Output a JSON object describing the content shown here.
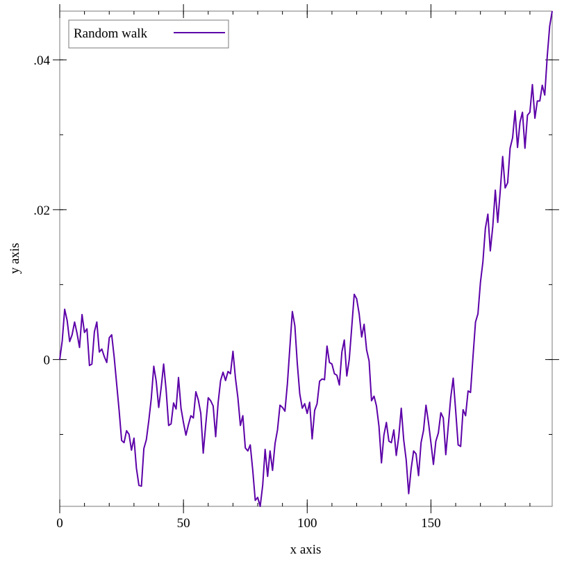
{
  "chart_data": {
    "type": "line",
    "xlabel": "x axis",
    "ylabel": "y axis",
    "xlim": [
      0,
      199
    ],
    "ylim": [
      -0.0196,
      0.0465
    ],
    "x_ticks": [
      {
        "value": 0,
        "label": "0"
      },
      {
        "value": 50,
        "label": "50"
      },
      {
        "value": 100,
        "label": "100"
      },
      {
        "value": 150,
        "label": "150"
      }
    ],
    "y_ticks": [
      {
        "value": 0,
        "label": "0"
      },
      {
        "value": 0.02,
        "label": ".02"
      },
      {
        "value": 0.04,
        "label": ".04"
      }
    ],
    "x_minor_step": 10,
    "y_minor_step": 0.01,
    "grid": false,
    "legend_position": "top-left",
    "series": [
      {
        "name": "Random walk",
        "color": "#5c00a8",
        "x": [
          0,
          1,
          2,
          3,
          4,
          5,
          6,
          7,
          8,
          9,
          10,
          11,
          12,
          13,
          14,
          15,
          16,
          17,
          18,
          19,
          20,
          21,
          22,
          23,
          24,
          25,
          26,
          27,
          28,
          29,
          30,
          31,
          32,
          33,
          34,
          35,
          36,
          37,
          38,
          39,
          40,
          41,
          42,
          43,
          44,
          45,
          46,
          47,
          48,
          49,
          50,
          51,
          52,
          53,
          54,
          55,
          56,
          57,
          58,
          59,
          60,
          61,
          62,
          63,
          64,
          65,
          66,
          67,
          68,
          69,
          70,
          71,
          72,
          73,
          74,
          75,
          76,
          77,
          78,
          79,
          80,
          81,
          82,
          83,
          84,
          85,
          86,
          87,
          88,
          89,
          90,
          91,
          92,
          93,
          94,
          95,
          96,
          97,
          98,
          99,
          100,
          101,
          102,
          103,
          104,
          105,
          106,
          107,
          108,
          109,
          110,
          111,
          112,
          113,
          114,
          115,
          116,
          117,
          118,
          119,
          120,
          121,
          122,
          123,
          124,
          125,
          126,
          127,
          128,
          129,
          130,
          131,
          132,
          133,
          134,
          135,
          136,
          137,
          138,
          139,
          140,
          141,
          142,
          143,
          144,
          145,
          146,
          147,
          148,
          149,
          150,
          151,
          152,
          153,
          154,
          155,
          156,
          157,
          158,
          159,
          160,
          161,
          162,
          163,
          164,
          165,
          166,
          167,
          168,
          169,
          170,
          171,
          172,
          173,
          174,
          175,
          176,
          177,
          178,
          179,
          180,
          181,
          182,
          183,
          184,
          185,
          186,
          187,
          188,
          189,
          190,
          191,
          192,
          193,
          194,
          195,
          196,
          197,
          198,
          199
        ],
        "y": [
          0,
          0.0025,
          0.0067,
          0.0052,
          0.0024,
          0.0033,
          0.005,
          0.0035,
          0.0016,
          0.006,
          0.0036,
          0.0041,
          -0.0008,
          -0.0006,
          0.0037,
          0.005,
          0.001,
          0.0014,
          0.0004,
          -0.0004,
          0.0029,
          0.0033,
          0.0003,
          -0.0032,
          -0.0068,
          -0.0108,
          -0.0111,
          -0.0095,
          -0.01,
          -0.0121,
          -0.0105,
          -0.0145,
          -0.0168,
          -0.0169,
          -0.0119,
          -0.0107,
          -0.0081,
          -0.0052,
          -0.0009,
          -0.0029,
          -0.0064,
          -0.0037,
          -0.0006,
          -0.0041,
          -0.0088,
          -0.0086,
          -0.0058,
          -0.0066,
          -0.0024,
          -0.0065,
          -0.0084,
          -0.0101,
          -0.0087,
          -0.0075,
          -0.0078,
          -0.0043,
          -0.0054,
          -0.0072,
          -0.0125,
          -0.0087,
          -0.0051,
          -0.0055,
          -0.0062,
          -0.0103,
          -0.0058,
          -0.0028,
          -0.0017,
          -0.0028,
          -0.0016,
          -0.0019,
          0.0011,
          -0.0025,
          -0.0051,
          -0.0088,
          -0.0075,
          -0.0118,
          -0.0122,
          -0.0114,
          -0.0148,
          -0.0188,
          -0.0184,
          -0.0196,
          -0.0168,
          -0.012,
          -0.0156,
          -0.0122,
          -0.0148,
          -0.0112,
          -0.0094,
          -0.0061,
          -0.0064,
          -0.0069,
          -0.0032,
          0.0016,
          0.0064,
          0.0045,
          -0.0005,
          -0.0046,
          -0.0065,
          -0.0059,
          -0.0072,
          -0.0057,
          -0.0106,
          -0.0068,
          -0.0059,
          -0.0029,
          -0.0026,
          -0.0027,
          0.0018,
          -0.0004,
          -0.0006,
          -0.0019,
          -0.0021,
          -0.0034,
          0.001,
          0.0026,
          -0.0022,
          0,
          0.0043,
          0.0087,
          0.0081,
          0.0061,
          0.003,
          0.0047,
          0.0013,
          -0.0002,
          -0.0055,
          -0.0049,
          -0.0062,
          -0.0089,
          -0.0138,
          -0.0101,
          -0.0084,
          -0.0109,
          -0.0111,
          -0.0094,
          -0.0128,
          -0.0103,
          -0.0065,
          -0.0107,
          -0.0134,
          -0.0179,
          -0.0146,
          -0.0122,
          -0.0126,
          -0.0155,
          -0.0111,
          -0.0095,
          -0.0061,
          -0.0084,
          -0.0111,
          -0.014,
          -0.0109,
          -0.0098,
          -0.0071,
          -0.0078,
          -0.0127,
          -0.0089,
          -0.0051,
          -0.0025,
          -0.0069,
          -0.0114,
          -0.0116,
          -0.0067,
          -0.0075,
          -0.0042,
          -0.0044,
          0.0004,
          0.005,
          0.0061,
          0.0103,
          0.013,
          0.0175,
          0.0194,
          0.0145,
          0.0178,
          0.0226,
          0.0183,
          0.0225,
          0.0271,
          0.0229,
          0.0236,
          0.0282,
          0.0296,
          0.0332,
          0.0283,
          0.0317,
          0.033,
          0.0282,
          0.0326,
          0.033,
          0.0367,
          0.0322,
          0.0345,
          0.0345,
          0.0366,
          0.0353,
          0.0405,
          0.0445,
          0.0465
        ]
      }
    ]
  }
}
